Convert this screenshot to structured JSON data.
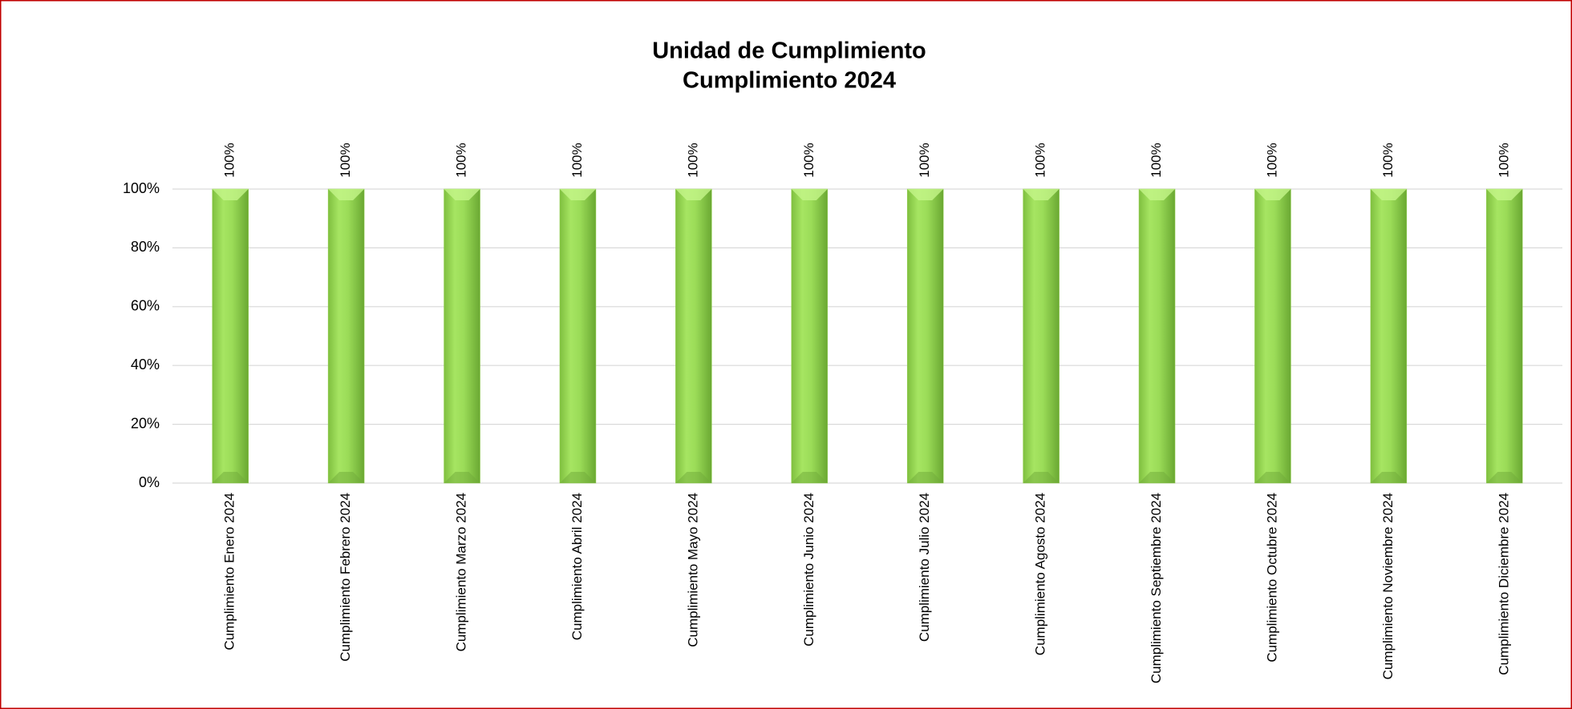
{
  "chart_data": {
    "type": "bar",
    "title": "Unidad de Cumplimiento",
    "subtitle": "Cumplimiento 2024",
    "categories": [
      "Cumplimiento Enero 2024",
      "Cumplimiento Febrero 2024",
      "Cumplimiento Marzo 2024",
      "Cumplimiento Abril 2024",
      "Cumplimiento Mayo 2024",
      "Cumplimiento Junio 2024",
      "Cumplimiento Julio 2024",
      "Cumplimiento Agosto 2024",
      "Cumplimiento Septiembre 2024",
      "Cumplimiento Octubre 2024",
      "Cumplimiento Noviembre 2024",
      "Cumplimiento Diciembre 2024"
    ],
    "values": [
      100,
      100,
      100,
      100,
      100,
      100,
      100,
      100,
      100,
      100,
      100,
      100
    ],
    "value_labels": [
      "100%",
      "100%",
      "100%",
      "100%",
      "100%",
      "100%",
      "100%",
      "100%",
      "100%",
      "100%",
      "100%",
      "100%"
    ],
    "color": "#92d050",
    "ylim": [
      0,
      100
    ],
    "yticks": [
      {
        "value": 0,
        "label": "0%"
      },
      {
        "value": 20,
        "label": "20%"
      },
      {
        "value": 40,
        "label": "40%"
      },
      {
        "value": 60,
        "label": "60%"
      },
      {
        "value": 80,
        "label": "80%"
      },
      {
        "value": 100,
        "label": "100%"
      }
    ],
    "grid": true
  }
}
